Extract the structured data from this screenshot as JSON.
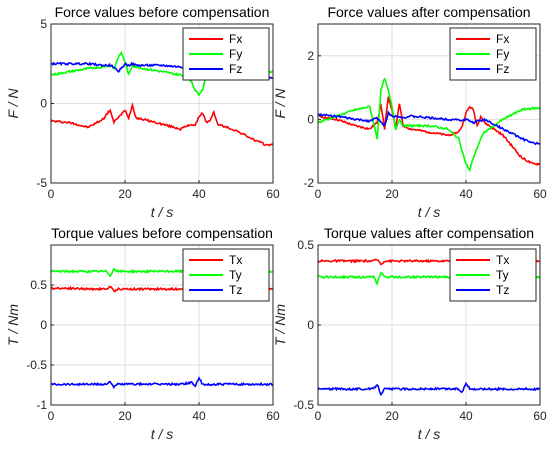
{
  "chart_data": [
    {
      "type": "line",
      "title": "Force values before compensation",
      "xlabel": "t / s",
      "ylabel": "F / N",
      "xlim": [
        0,
        60
      ],
      "ylim": [
        -5,
        5
      ],
      "xticks": [
        "0",
        "20",
        "40",
        "60"
      ],
      "yticks": [
        "-5",
        "0",
        "5"
      ],
      "grid": true,
      "legend_position": "top-right",
      "x": [
        0,
        5,
        10,
        14,
        16,
        17,
        18,
        19,
        20,
        21,
        22,
        23,
        25,
        30,
        35,
        38,
        39,
        40,
        41,
        42,
        43,
        44,
        45,
        50,
        55,
        58,
        60
      ],
      "series": [
        {
          "name": "Fx",
          "color": "#ff0000",
          "values": [
            -1.1,
            -1.2,
            -1.5,
            -1.0,
            -0.4,
            -1.2,
            -0.9,
            -0.7,
            -0.4,
            -0.9,
            -0.1,
            -0.9,
            -1.0,
            -1.3,
            -1.6,
            -1.3,
            -1.4,
            -0.8,
            -0.6,
            -1.2,
            -1.1,
            -0.5,
            -1.3,
            -1.7,
            -2.3,
            -2.6,
            -2.6
          ]
        },
        {
          "name": "Fy",
          "color": "#00ff00",
          "values": [
            1.8,
            2.0,
            2.2,
            2.3,
            2.4,
            2.2,
            2.8,
            3.2,
            2.6,
            1.8,
            2.4,
            2.3,
            2.2,
            2.0,
            1.8,
            1.4,
            0.8,
            0.6,
            0.9,
            1.8,
            2.0,
            2.1,
            2.0,
            1.9,
            2.0,
            2.0,
            2.0
          ]
        },
        {
          "name": "Fz",
          "color": "#0000ff",
          "values": [
            2.5,
            2.5,
            2.5,
            2.4,
            2.4,
            2.3,
            2.0,
            2.2,
            2.5,
            2.4,
            2.5,
            2.4,
            2.4,
            2.4,
            2.3,
            2.2,
            2.2,
            2.0,
            1.9,
            1.9,
            1.9,
            1.8,
            1.8,
            1.7,
            1.6,
            1.6,
            1.6
          ]
        }
      ]
    },
    {
      "type": "line",
      "title": "Force values after compensation",
      "xlabel": "t / s",
      "ylabel": "F / N",
      "xlim": [
        0,
        60
      ],
      "ylim": [
        -2,
        3
      ],
      "xticks": [
        "0",
        "20",
        "40",
        "60"
      ],
      "yticks": [
        "-2",
        "0",
        "2"
      ],
      "grid": true,
      "legend_position": "top-right",
      "x": [
        0,
        5,
        10,
        14,
        16,
        17,
        18,
        19,
        20,
        21,
        22,
        23,
        25,
        30,
        35,
        38,
        39,
        40,
        41,
        42,
        43,
        44,
        45,
        50,
        55,
        58,
        60
      ],
      "series": [
        {
          "name": "Fx",
          "color": "#ff0000",
          "values": [
            0.1,
            0.0,
            -0.2,
            -0.3,
            -0.1,
            0.5,
            -0.3,
            0.7,
            0.3,
            -0.3,
            0.5,
            -0.2,
            -0.3,
            -0.4,
            -0.5,
            -0.4,
            -0.2,
            0.2,
            0.4,
            0.3,
            -0.2,
            0.1,
            -0.1,
            -0.5,
            -1.2,
            -1.4,
            -1.4
          ]
        },
        {
          "name": "Fy",
          "color": "#00ff00",
          "values": [
            -0.1,
            0.1,
            0.3,
            0.4,
            -0.6,
            0.9,
            1.3,
            0.9,
            0.4,
            -0.3,
            0.0,
            -0.2,
            -0.2,
            -0.2,
            -0.3,
            -0.6,
            -1.0,
            -1.4,
            -1.6,
            -1.2,
            -0.9,
            -0.6,
            -0.4,
            0.0,
            0.3,
            0.35,
            0.35
          ]
        },
        {
          "name": "Fz",
          "color": "#0000ff",
          "values": [
            0.15,
            0.1,
            0.0,
            -0.05,
            0.05,
            -0.1,
            -0.2,
            0.2,
            0.1,
            0.1,
            0.1,
            0.05,
            0.1,
            0.05,
            0.0,
            0.0,
            -0.05,
            0.0,
            -0.05,
            -0.1,
            -0.05,
            -0.05,
            0.0,
            -0.3,
            -0.6,
            -0.75,
            -0.75
          ]
        }
      ]
    },
    {
      "type": "line",
      "title": "Torque values before compensation",
      "xlabel": "t / s",
      "ylabel": "T / Nm",
      "xlim": [
        0,
        60
      ],
      "ylim": [
        -1,
        1
      ],
      "xticks": [
        "0",
        "20",
        "40",
        "60"
      ],
      "yticks": [
        "-1",
        "-0.5",
        "0",
        "0.5"
      ],
      "grid": true,
      "legend_position": "top-right",
      "x": [
        0,
        5,
        10,
        15,
        16,
        17,
        18,
        20,
        25,
        30,
        35,
        38,
        39,
        40,
        41,
        45,
        50,
        55,
        60
      ],
      "series": [
        {
          "name": "Tx",
          "color": "#ff0000",
          "values": [
            0.46,
            0.46,
            0.45,
            0.45,
            0.48,
            0.42,
            0.45,
            0.45,
            0.45,
            0.45,
            0.45,
            0.45,
            0.44,
            0.46,
            0.45,
            0.45,
            0.45,
            0.45,
            0.45
          ]
        },
        {
          "name": "Ty",
          "color": "#00ff00",
          "values": [
            0.67,
            0.67,
            0.67,
            0.67,
            0.62,
            0.7,
            0.67,
            0.67,
            0.67,
            0.67,
            0.67,
            0.67,
            0.66,
            0.68,
            0.67,
            0.67,
            0.67,
            0.67,
            0.67
          ]
        },
        {
          "name": "Tz",
          "color": "#0000ff",
          "values": [
            -0.74,
            -0.74,
            -0.74,
            -0.74,
            -0.7,
            -0.78,
            -0.74,
            -0.74,
            -0.74,
            -0.74,
            -0.74,
            -0.72,
            -0.76,
            -0.66,
            -0.75,
            -0.74,
            -0.74,
            -0.74,
            -0.74
          ]
        }
      ]
    },
    {
      "type": "line",
      "title": "Torque values after compensation",
      "xlabel": "t / s",
      "ylabel": "T / Nm",
      "xlim": [
        0,
        60
      ],
      "ylim": [
        -0.5,
        0.5
      ],
      "xticks": [
        "0",
        "20",
        "40",
        "60"
      ],
      "yticks": [
        "-0.5",
        "0",
        "0.5"
      ],
      "grid": true,
      "legend_position": "top-right",
      "x": [
        0,
        5,
        10,
        15,
        16,
        17,
        18,
        20,
        25,
        30,
        35,
        38,
        39,
        40,
        41,
        45,
        50,
        55,
        60
      ],
      "series": [
        {
          "name": "Tx",
          "color": "#ff0000",
          "values": [
            0.4,
            0.4,
            0.4,
            0.4,
            0.41,
            0.38,
            0.4,
            0.4,
            0.4,
            0.4,
            0.4,
            0.4,
            0.39,
            0.41,
            0.4,
            0.4,
            0.4,
            0.4,
            0.4
          ]
        },
        {
          "name": "Ty",
          "color": "#00ff00",
          "values": [
            0.3,
            0.3,
            0.3,
            0.3,
            0.26,
            0.33,
            0.3,
            0.3,
            0.3,
            0.3,
            0.3,
            0.3,
            0.29,
            0.31,
            0.3,
            0.3,
            0.3,
            0.3,
            0.3
          ]
        },
        {
          "name": "Tz",
          "color": "#0000ff",
          "values": [
            -0.4,
            -0.4,
            -0.4,
            -0.4,
            -0.37,
            -0.43,
            -0.4,
            -0.4,
            -0.4,
            -0.4,
            -0.4,
            -0.4,
            -0.42,
            -0.36,
            -0.4,
            -0.4,
            -0.4,
            -0.4,
            -0.4
          ]
        }
      ]
    }
  ]
}
